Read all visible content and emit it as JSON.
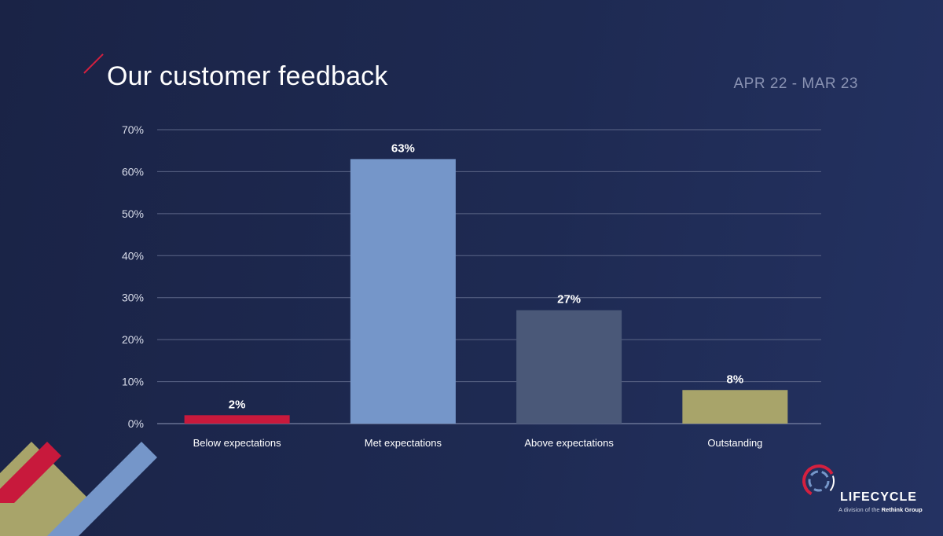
{
  "page": {
    "title": "Our customer feedback",
    "date_range": "APR 22 - MAR 23"
  },
  "chart_data": {
    "type": "bar",
    "title": "Our customer feedback",
    "categories": [
      "Below expectations",
      "Met expectations",
      "Above expectations",
      "Outstanding"
    ],
    "values": [
      2,
      63,
      27,
      8
    ],
    "value_labels": [
      "2%",
      "63%",
      "27%",
      "8%"
    ],
    "bar_colors": [
      "#c8193c",
      "#7596c9",
      "#4a5878",
      "#a8a46a"
    ],
    "yticks": [
      "0%",
      "10%",
      "20%",
      "30%",
      "40%",
      "50%",
      "60%",
      "70%"
    ],
    "ylim": [
      0,
      70
    ],
    "grid": true,
    "xlabel": "",
    "ylabel": ""
  },
  "logo": {
    "name": "LIFECYCLE",
    "tagline_prefix": "A division of the ",
    "tagline_brand": "Rethink Group"
  },
  "colors": {
    "background": "#1e2a52",
    "accent_red": "#d4203f",
    "accent_blue": "#7596c9",
    "accent_olive": "#a8a46a",
    "grid": "#5c6687"
  }
}
